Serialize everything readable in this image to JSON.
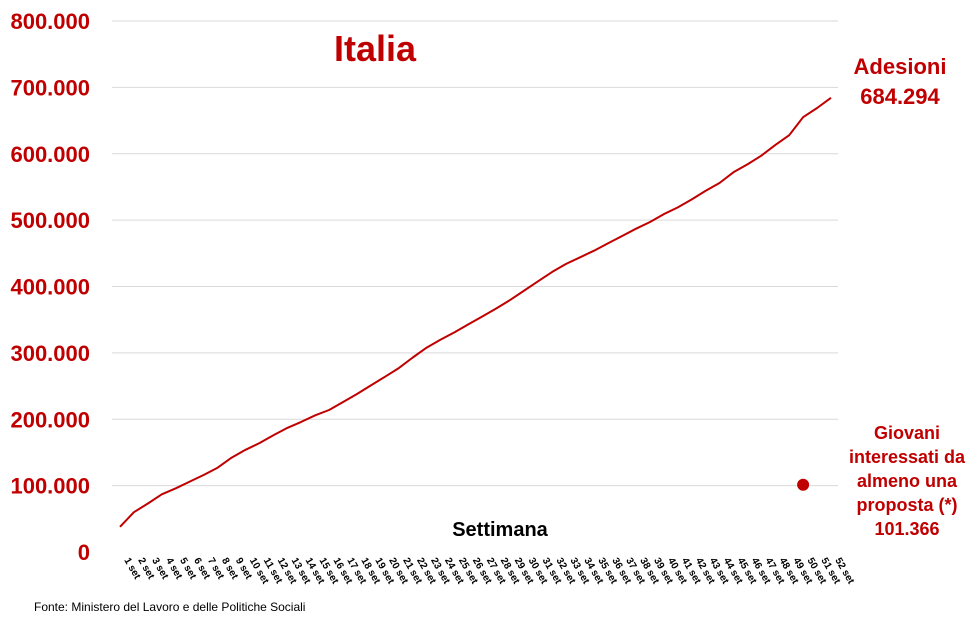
{
  "chart_data": {
    "type": "line",
    "title": "Italia",
    "xlabel": "Settimana",
    "ylabel": "",
    "ylim": [
      0,
      800000
    ],
    "yticks": [
      "0",
      "100.000",
      "200.000",
      "300.000",
      "400.000",
      "500.000",
      "600.000",
      "700.000",
      "800.000"
    ],
    "ytick_values": [
      0,
      100000,
      200000,
      300000,
      400000,
      500000,
      600000,
      700000,
      800000
    ],
    "categories": [
      "1 set",
      "2 set",
      "3 set",
      "4 set",
      "5 set",
      "6 set",
      "7 set",
      "8 set",
      "9 set",
      "10 set",
      "11 set",
      "12 set",
      "13 set",
      "14 set",
      "15 set",
      "16 set",
      "17 set",
      "18 set",
      "19 set",
      "20 set",
      "21 set",
      "22 set",
      "23 set",
      "24 set",
      "25 set",
      "26 set",
      "27 set",
      "28 set",
      "29 set",
      "30 set",
      "31 set",
      "32 set",
      "33 set",
      "34 set",
      "35 set",
      "36 set",
      "37 set",
      "38 set",
      "39 set",
      "40 set",
      "41 set",
      "42 set",
      "43 set",
      "44 set",
      "45 set",
      "46 set",
      "47 set",
      "48 set",
      "49 set",
      "50 set",
      "51 set",
      "52 set"
    ],
    "grid": true,
    "series": [
      {
        "name": "Adesioni",
        "color": "#c00000",
        "values": [
          38000,
          60000,
          73000,
          87000,
          96000,
          106000,
          116000,
          127000,
          142000,
          154000,
          164000,
          176000,
          187000,
          196000,
          206000,
          214000,
          226000,
          238000,
          251000,
          264000,
          277000,
          293000,
          308000,
          320000,
          331000,
          343000,
          355000,
          367000,
          380000,
          394000,
          408000,
          422000,
          434000,
          444000,
          454000,
          465000,
          476000,
          487000,
          497000,
          509000,
          519000,
          531000,
          544000,
          556000,
          572000,
          584000,
          597000,
          613000,
          628000,
          655000,
          669000,
          684294
        ]
      }
    ],
    "series_label_lines": [
      "Adesioni",
      "684.294"
    ],
    "point": {
      "category": "50 set",
      "value": 101366,
      "color": "#c00000",
      "label_lines": [
        "Giovani",
        "interessati da",
        "almeno una",
        "proposta (*)",
        "101.366"
      ]
    },
    "tick_color": "#c00000",
    "grid_color": "#d9d9d9"
  },
  "source": "Fonte: Ministero del Lavoro e delle Politiche Sociali"
}
